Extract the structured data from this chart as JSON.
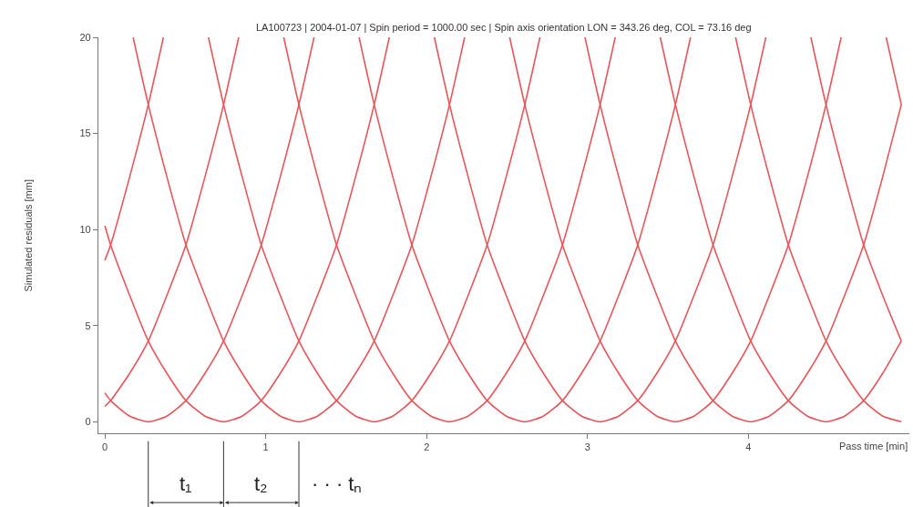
{
  "chart_data": {
    "type": "line",
    "title": "LA100723 | 2004-01-07 | Spin period = 1000.00 sec | Spin axis orientation LON = 343.26 deg, COL = 73.16 deg",
    "xlabel": "Pass time [min]",
    "ylabel": "Simulated residuals [mm]",
    "xlim": [
      -0.04,
      5.0
    ],
    "ylim": [
      -0.6,
      20
    ],
    "xticks": [
      0,
      1,
      2,
      3,
      4
    ],
    "yticks": [
      0,
      5,
      10,
      15,
      20
    ],
    "marker": "none",
    "line_style": "solid",
    "annotations": [
      "t₁",
      "t₂",
      "· · · tₙ"
    ],
    "series": [
      {
        "color": "#e8555a",
        "x": [
          0,
          0.036,
          0.153,
          0.27,
          0.364
        ],
        "values": [
          8.4,
          9.2,
          12.7,
          16.5,
          20
        ]
      },
      {
        "color": "#e8555a",
        "x": [
          0,
          0.036,
          0.153,
          0.27,
          0.387,
          0.504,
          0.621,
          0.738,
          0.832
        ],
        "values": [
          0.8,
          1.1,
          2.5,
          4.2,
          6.6,
          9.2,
          12.7,
          16.5,
          20
        ]
      },
      {
        "color": "#e8555a",
        "x": [
          0,
          0.036,
          0.153,
          0.27,
          0.387,
          0.504,
          0.621,
          0.738,
          0.855,
          0.972,
          1.089,
          1.206,
          1.3
        ],
        "values": [
          1.5,
          1.1,
          0.3,
          0,
          0.3,
          1.1,
          2.5,
          4.2,
          6.6,
          9.2,
          12.7,
          16.5,
          20
        ]
      },
      {
        "color": "#e8555a",
        "x": [
          0,
          0.036,
          0.153,
          0.27,
          0.387,
          0.504,
          0.621,
          0.738,
          0.855,
          0.972,
          1.089,
          1.206,
          1.323,
          1.44,
          1.557,
          1.674,
          1.768
        ],
        "values": [
          10.2,
          9.2,
          6.6,
          4.2,
          2.5,
          1.1,
          0.3,
          0,
          0.3,
          1.1,
          2.5,
          4.2,
          6.6,
          9.2,
          12.7,
          16.5,
          20
        ]
      },
      {
        "color": "#e8555a",
        "x": [
          0.176,
          0.27,
          0.387,
          0.504,
          0.621,
          0.738,
          0.855,
          0.972,
          1.089,
          1.206,
          1.323,
          1.44,
          1.557,
          1.674,
          1.791,
          1.908,
          2.025,
          2.142,
          2.236
        ],
        "values": [
          20,
          16.5,
          12.7,
          9.2,
          6.6,
          4.2,
          2.5,
          1.1,
          0.3,
          0,
          0.3,
          1.1,
          2.5,
          4.2,
          6.6,
          9.2,
          12.7,
          16.5,
          20
        ]
      },
      {
        "color": "#e8555a",
        "x": [
          0.644,
          0.738,
          0.855,
          0.972,
          1.089,
          1.206,
          1.323,
          1.44,
          1.557,
          1.674,
          1.791,
          1.908,
          2.025,
          2.142,
          2.259,
          2.376,
          2.493,
          2.61,
          2.704
        ],
        "values": [
          20,
          16.5,
          12.7,
          9.2,
          6.6,
          4.2,
          2.5,
          1.1,
          0.3,
          0,
          0.3,
          1.1,
          2.5,
          4.2,
          6.6,
          9.2,
          12.7,
          16.5,
          20
        ]
      },
      {
        "color": "#e8555a",
        "x": [
          1.112,
          1.206,
          1.323,
          1.44,
          1.557,
          1.674,
          1.791,
          1.908,
          2.025,
          2.142,
          2.259,
          2.376,
          2.493,
          2.61,
          2.727,
          2.844,
          2.961,
          3.078,
          3.172
        ],
        "values": [
          20,
          16.5,
          12.7,
          9.2,
          6.6,
          4.2,
          2.5,
          1.1,
          0.3,
          0,
          0.3,
          1.1,
          2.5,
          4.2,
          6.6,
          9.2,
          12.7,
          16.5,
          20
        ]
      },
      {
        "color": "#e8555a",
        "x": [
          1.58,
          1.674,
          1.791,
          1.908,
          2.025,
          2.142,
          2.259,
          2.376,
          2.493,
          2.61,
          2.727,
          2.844,
          2.961,
          3.078,
          3.195,
          3.312,
          3.429,
          3.546,
          3.64
        ],
        "values": [
          20,
          16.5,
          12.7,
          9.2,
          6.6,
          4.2,
          2.5,
          1.1,
          0.3,
          0,
          0.3,
          1.1,
          2.5,
          4.2,
          6.6,
          9.2,
          12.7,
          16.5,
          20
        ]
      },
      {
        "color": "#e8555a",
        "x": [
          2.048,
          2.142,
          2.259,
          2.376,
          2.493,
          2.61,
          2.727,
          2.844,
          2.961,
          3.078,
          3.195,
          3.312,
          3.429,
          3.546,
          3.663,
          3.78,
          3.897,
          4.014,
          4.108
        ],
        "values": [
          20,
          16.5,
          12.7,
          9.2,
          6.6,
          4.2,
          2.5,
          1.1,
          0.3,
          0,
          0.3,
          1.1,
          2.5,
          4.2,
          6.6,
          9.2,
          12.7,
          16.5,
          20
        ]
      },
      {
        "color": "#e8555a",
        "x": [
          2.516,
          2.61,
          2.727,
          2.844,
          2.961,
          3.078,
          3.195,
          3.312,
          3.429,
          3.546,
          3.663,
          3.78,
          3.897,
          4.014,
          4.131,
          4.248,
          4.365,
          4.482,
          4.576
        ],
        "values": [
          20,
          16.5,
          12.7,
          9.2,
          6.6,
          4.2,
          2.5,
          1.1,
          0.3,
          0,
          0.3,
          1.1,
          2.5,
          4.2,
          6.6,
          9.2,
          12.7,
          16.5,
          20
        ]
      },
      {
        "color": "#e8555a",
        "x": [
          2.984,
          3.078,
          3.195,
          3.312,
          3.429,
          3.546,
          3.663,
          3.78,
          3.897,
          4.014,
          4.131,
          4.248,
          4.365,
          4.482,
          4.599,
          4.716,
          4.833,
          4.95
        ],
        "values": [
          20,
          16.5,
          12.7,
          9.2,
          6.6,
          4.2,
          2.5,
          1.1,
          0.3,
          0,
          0.3,
          1.1,
          2.5,
          4.2,
          6.6,
          9.2,
          12.7,
          16.5
        ]
      },
      {
        "color": "#e8555a",
        "x": [
          3.452,
          3.546,
          3.663,
          3.78,
          3.897,
          4.014,
          4.131,
          4.248,
          4.365,
          4.482,
          4.599,
          4.716,
          4.833,
          4.95
        ],
        "values": [
          20,
          16.5,
          12.7,
          9.2,
          6.6,
          4.2,
          2.5,
          1.1,
          0.3,
          0,
          0.3,
          1.1,
          2.5,
          4.2
        ]
      },
      {
        "color": "#e8555a",
        "x": [
          3.92,
          4.014,
          4.131,
          4.248,
          4.365,
          4.482,
          4.599,
          4.716,
          4.833,
          4.95
        ],
        "values": [
          20,
          16.5,
          12.7,
          9.2,
          6.6,
          4.2,
          2.5,
          1.1,
          0.3,
          0
        ]
      },
      {
        "color": "#e8555a",
        "x": [
          4.388,
          4.482,
          4.599,
          4.716,
          4.833,
          4.95
        ],
        "values": [
          20,
          16.5,
          12.7,
          9.2,
          6.6,
          4.2
        ]
      },
      {
        "color": "#e8555a",
        "x": [
          4.856,
          4.95
        ],
        "values": [
          20,
          16.5
        ]
      }
    ]
  }
}
